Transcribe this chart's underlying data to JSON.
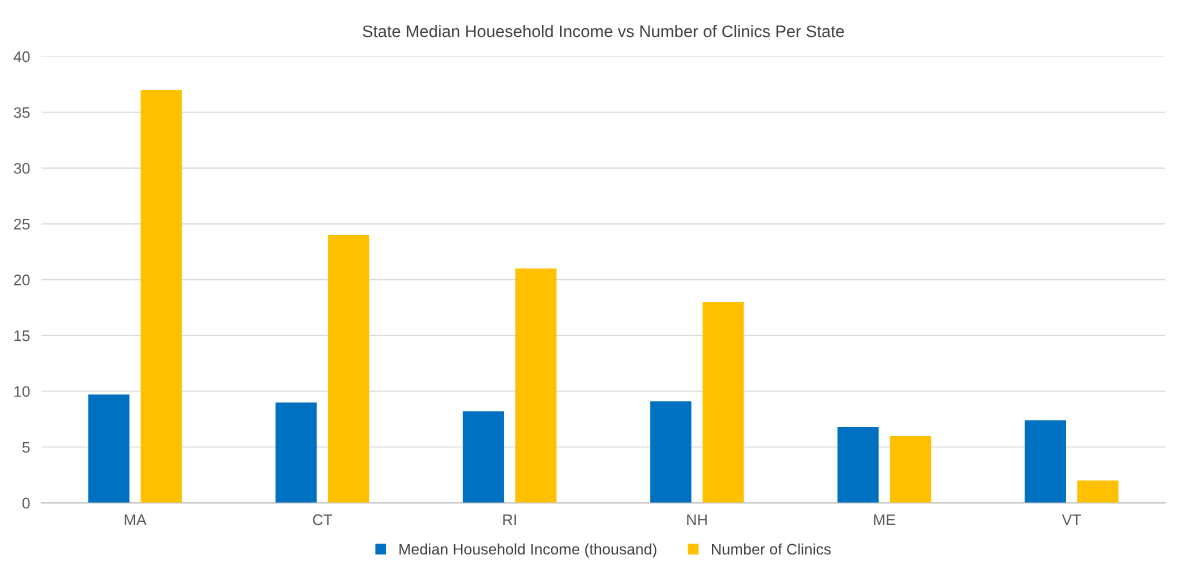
{
  "chart_data": {
    "type": "bar",
    "title": "State Median Houesehold Income vs Number of Clinics Per State",
    "categories": [
      "MA",
      "CT",
      "RI",
      "NH",
      "ME",
      "VT"
    ],
    "series": [
      {
        "name": "Median Household Income (thousand)",
        "color": "#0070c0",
        "values": [
          9.7,
          9.0,
          8.2,
          9.1,
          6.8,
          7.4
        ]
      },
      {
        "name": "Number of Clinics",
        "color": "#ffc000",
        "values": [
          37,
          24,
          21,
          18,
          6,
          2
        ]
      }
    ],
    "ylim": [
      0,
      40
    ],
    "yticks": [
      0,
      5,
      10,
      15,
      20,
      25,
      30,
      35,
      40
    ],
    "grid": "y",
    "legend": "bottom"
  }
}
